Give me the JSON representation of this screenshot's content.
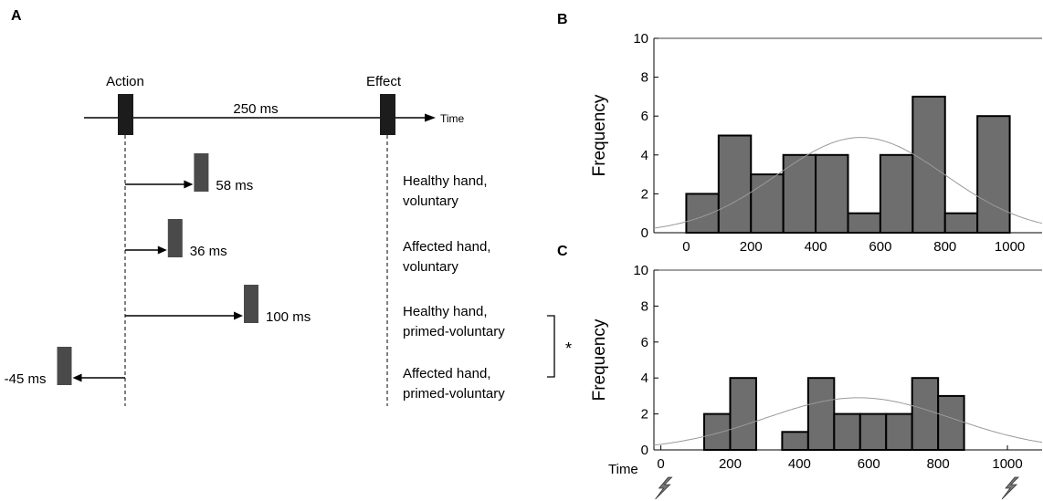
{
  "panel_a": {
    "letter": "A",
    "action_label": "Action",
    "effect_label": "Effect",
    "interval_label": "250 ms",
    "time_label": "Time",
    "significance": "*",
    "conditions": [
      {
        "shift_ms": 58,
        "shift_label": "58 ms",
        "condition_line1": "Healthy hand,",
        "condition_line2": "voluntary"
      },
      {
        "shift_ms": 36,
        "shift_label": "36 ms",
        "condition_line1": "Affected hand,",
        "condition_line2": "voluntary"
      },
      {
        "shift_ms": 100,
        "shift_label": "100 ms",
        "condition_line1": "Healthy hand,",
        "condition_line2": "primed-voluntary"
      },
      {
        "shift_ms": -45,
        "shift_label": "-45 ms",
        "condition_line1": "Affected hand,",
        "condition_line2": "primed-voluntary"
      }
    ]
  },
  "chart_data": [
    {
      "panel": "B",
      "type": "bar",
      "bin_width": 100,
      "bin_centers": [
        50,
        150,
        250,
        350,
        450,
        550,
        650,
        750,
        850,
        950
      ],
      "values": [
        2,
        5,
        3,
        4,
        4,
        1,
        4,
        7,
        1,
        6
      ],
      "xlim": [
        -100,
        1100
      ],
      "ylim": [
        0,
        10
      ],
      "xticks": [
        "0",
        "200",
        "400",
        "600",
        "800",
        "1000"
      ],
      "yticks": [
        "0",
        "2",
        "4",
        "6",
        "8",
        "10"
      ],
      "ylabel": "Frequency",
      "xlabel": "",
      "fit_curve": "normal",
      "fit_peak": 4.9,
      "fit_mean": 540,
      "fit_sd": 260,
      "bar_color": "#6e6e6e"
    },
    {
      "panel": "C",
      "type": "bar",
      "bin_width": 75,
      "bin_centers": [
        162.5,
        237.5,
        312.5,
        387.5,
        462.5,
        537.5,
        612.5,
        687.5,
        762.5,
        837.5,
        912.5
      ],
      "values": [
        2,
        4,
        0,
        1,
        4,
        2,
        2,
        2,
        4,
        3,
        0
      ],
      "xlim": [
        -20,
        1100
      ],
      "ylim": [
        0,
        10
      ],
      "xticks": [
        "0",
        "200",
        "400",
        "600",
        "800",
        "1000"
      ],
      "yticks": [
        "0",
        "2",
        "4",
        "6",
        "8",
        "10"
      ],
      "ylabel": "Frequency",
      "xlabel": "Time",
      "fit_curve": "normal",
      "fit_peak": 2.9,
      "fit_mean": 570,
      "fit_sd": 270,
      "bar_color": "#6e6e6e",
      "annotation_icon": "lightning-bolt-icon"
    }
  ]
}
